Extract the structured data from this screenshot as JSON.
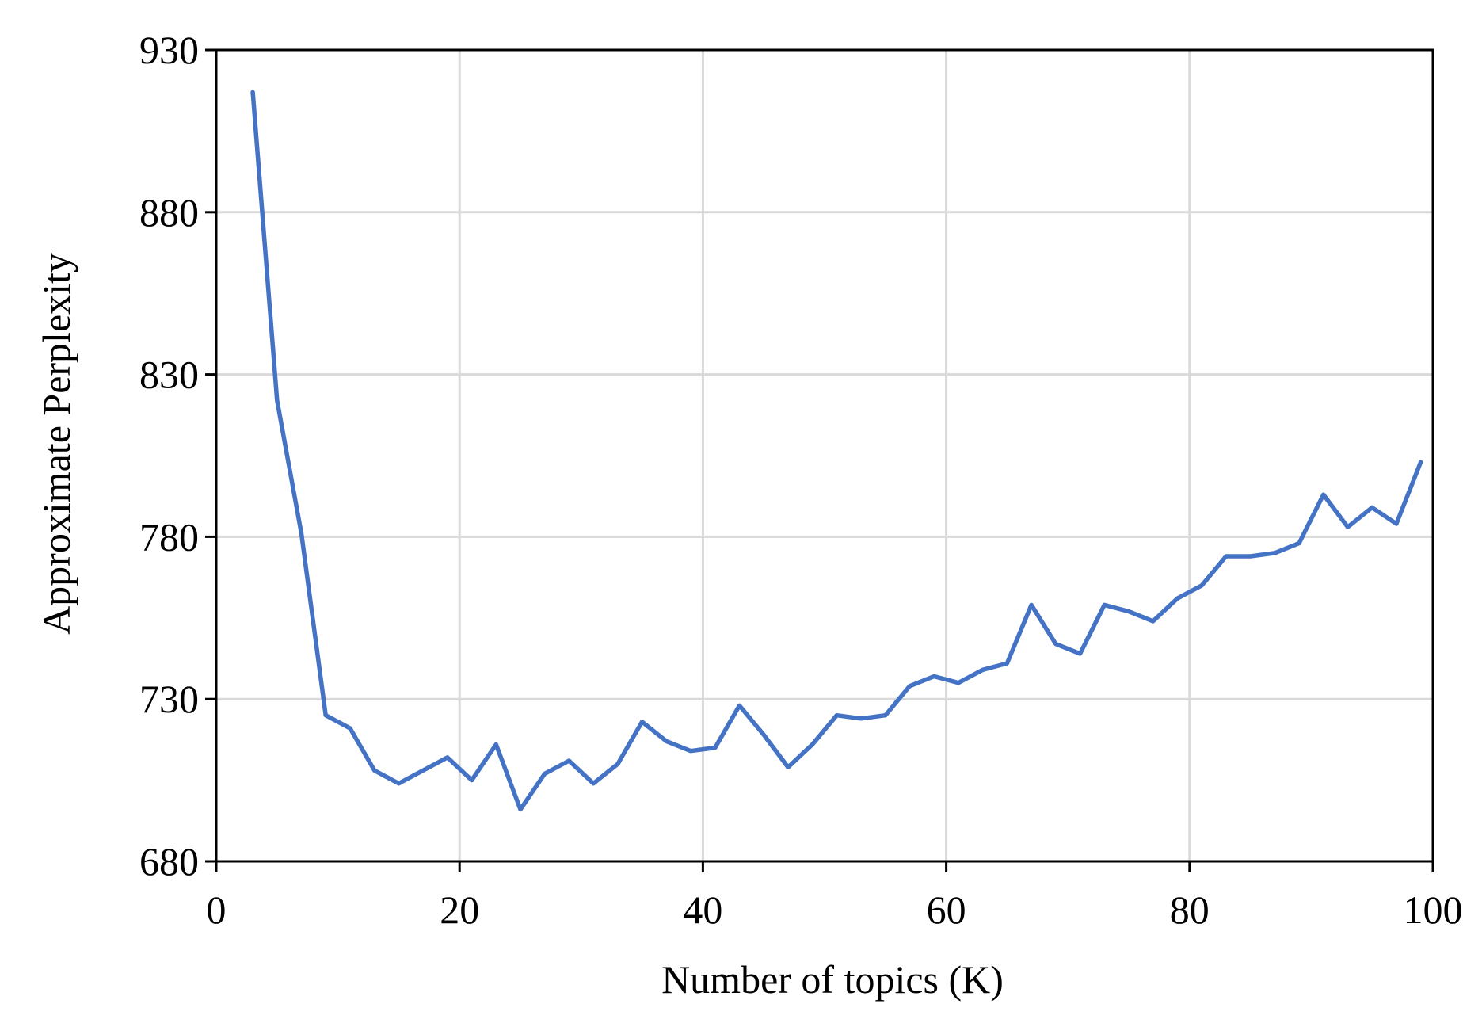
{
  "chart_data": {
    "type": "line",
    "title": "",
    "xlabel": "Number of topics (K)",
    "ylabel": "Approximate Perplexity",
    "xlim": [
      0,
      100
    ],
    "ylim": [
      680,
      930
    ],
    "x_ticks": [
      0,
      20,
      40,
      60,
      80,
      100
    ],
    "y_ticks": [
      680,
      730,
      780,
      830,
      880,
      930
    ],
    "grid": true,
    "legend": "none",
    "series": [
      {
        "color": "#4472c4",
        "x": [
          3,
          5,
          7,
          9,
          11,
          13,
          15,
          17,
          19,
          21,
          23,
          25,
          27,
          29,
          31,
          33,
          35,
          37,
          39,
          41,
          43,
          45,
          47,
          49,
          51,
          53,
          55,
          57,
          59,
          61,
          63,
          65,
          67,
          69,
          71,
          73,
          75,
          77,
          79,
          81,
          83,
          85,
          87,
          89,
          91,
          93,
          95,
          97,
          99
        ],
        "values": [
          917,
          822,
          781,
          725,
          721,
          708,
          704,
          708,
          712,
          705,
          716,
          696,
          707,
          711,
          704,
          710,
          723,
          717,
          714,
          715,
          728,
          719,
          709,
          716,
          725,
          724,
          725,
          734,
          737,
          735,
          739,
          741,
          759,
          747,
          744,
          759,
          757,
          754,
          761,
          765,
          774,
          774,
          775,
          778,
          793,
          783,
          789,
          784,
          803
        ]
      }
    ]
  }
}
